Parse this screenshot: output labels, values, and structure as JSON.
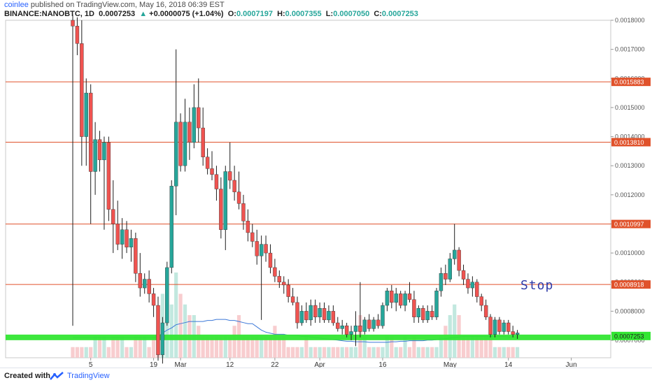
{
  "header": {
    "author": "coinlee",
    "published_text": "published on TradingView.com, May 16, 2018 06:39 EST",
    "symbol": "BINANCE:NANOBTC, 1D",
    "last": "0.0007253",
    "arrow": "▲",
    "change": "+0.0000075 (+1.04%)",
    "o_label": "O:",
    "o_value": "0.0007197",
    "h_label": "H:",
    "h_value": "0.0007355",
    "l_label": "L:",
    "l_value": "0.0007050",
    "c_label": "C:",
    "c_value": "0.0007253"
  },
  "footer": {
    "created_with": "Created with",
    "brand": "TradingView"
  },
  "annotation": {
    "stop_text": "Stop"
  },
  "colors": {
    "up": "#26a69a",
    "down": "#ef5350",
    "level_line": "#e0522b",
    "support_band": "#33e633",
    "volume_ma": "#3c78d8"
  },
  "chart_data": {
    "type": "candlestick",
    "price_axis": {
      "ylim": [
        0.00064,
        0.0018
      ],
      "tick_labels": [
        "0.0007000",
        "0.0008000",
        "0.0009000",
        "0.0010000",
        "0.0011000",
        "0.0012000",
        "0.0013000",
        "0.0014000",
        "0.0015000",
        "0.0016000",
        "0.0017000",
        "0.0018000"
      ],
      "tick_values": [
        0.0007,
        0.0008,
        0.0009,
        0.001,
        0.0011,
        0.0012,
        0.0013,
        0.0014,
        0.0015,
        0.0016,
        0.0017,
        0.0018
      ]
    },
    "time_axis": {
      "tick_labels": [
        "5",
        "19",
        "Mar",
        "12",
        "22",
        "Apr",
        "16",
        "May",
        "14",
        "Jun"
      ],
      "tick_days": [
        4,
        18,
        24,
        35,
        45,
        55,
        69,
        84,
        97,
        111
      ]
    },
    "horizontal_levels": [
      {
        "value": 0.0015883,
        "label": "0.0015883"
      },
      {
        "value": 0.001381,
        "label": "0.0013810"
      },
      {
        "value": 0.0010997,
        "label": "0.0010997"
      },
      {
        "value": 0.0008918,
        "label": "0.0008918"
      }
    ],
    "support_band": {
      "value": 0.00071,
      "label": "0.0007253",
      "note": "Stop"
    },
    "candles": [
      {
        "d": 0,
        "o": 0.0018,
        "h": 0.00182,
        "l": 0.00075,
        "c": 0.00178
      },
      {
        "d": 1,
        "o": 0.00178,
        "h": 0.00181,
        "l": 0.00168,
        "c": 0.00172
      },
      {
        "d": 2,
        "o": 0.00172,
        "h": 0.0018,
        "l": 0.0013,
        "c": 0.0014
      },
      {
        "d": 3,
        "o": 0.0014,
        "h": 0.0016,
        "l": 0.0013,
        "c": 0.00155
      },
      {
        "d": 4,
        "o": 0.00155,
        "h": 0.00158,
        "l": 0.0011,
        "c": 0.00128
      },
      {
        "d": 5,
        "o": 0.00128,
        "h": 0.00145,
        "l": 0.0012,
        "c": 0.00139
      },
      {
        "d": 6,
        "o": 0.00139,
        "h": 0.00142,
        "l": 0.00128,
        "c": 0.00132
      },
      {
        "d": 7,
        "o": 0.00132,
        "h": 0.0014,
        "l": 0.00108,
        "c": 0.00138
      },
      {
        "d": 8,
        "o": 0.00138,
        "h": 0.0014,
        "l": 0.00111,
        "c": 0.00115
      },
      {
        "d": 9,
        "o": 0.00115,
        "h": 0.00125,
        "l": 0.001,
        "c": 0.0011
      },
      {
        "d": 10,
        "o": 0.0011,
        "h": 0.00118,
        "l": 0.00101,
        "c": 0.00103
      },
      {
        "d": 11,
        "o": 0.00103,
        "h": 0.00112,
        "l": 0.00098,
        "c": 0.00108
      },
      {
        "d": 12,
        "o": 0.00108,
        "h": 0.00111,
        "l": 0.001,
        "c": 0.00102
      },
      {
        "d": 13,
        "o": 0.00102,
        "h": 0.00108,
        "l": 0.00097,
        "c": 0.00105
      },
      {
        "d": 14,
        "o": 0.00105,
        "h": 0.00107,
        "l": 0.0009,
        "c": 0.00093
      },
      {
        "d": 15,
        "o": 0.00093,
        "h": 0.001,
        "l": 0.00085,
        "c": 0.00088
      },
      {
        "d": 16,
        "o": 0.00088,
        "h": 0.00093,
        "l": 0.00086,
        "c": 0.00091
      },
      {
        "d": 17,
        "o": 0.00091,
        "h": 0.00094,
        "l": 0.00083,
        "c": 0.00086
      },
      {
        "d": 18,
        "o": 0.00086,
        "h": 0.00088,
        "l": 0.00078,
        "c": 0.00082
      },
      {
        "d": 19,
        "o": 0.00082,
        "h": 0.00085,
        "l": 0.00063,
        "c": 0.00065
      },
      {
        "d": 20,
        "o": 0.00065,
        "h": 0.00078,
        "l": 0.00062,
        "c": 0.00076
      },
      {
        "d": 21,
        "o": 0.00076,
        "h": 0.00097,
        "l": 0.00075,
        "c": 0.00095
      },
      {
        "d": 22,
        "o": 0.00095,
        "h": 0.00125,
        "l": 0.00093,
        "c": 0.00123
      },
      {
        "d": 23,
        "o": 0.00123,
        "h": 0.0017,
        "l": 0.00113,
        "c": 0.00145
      },
      {
        "d": 24,
        "o": 0.00145,
        "h": 0.00148,
        "l": 0.00128,
        "c": 0.0013
      },
      {
        "d": 25,
        "o": 0.0013,
        "h": 0.00153,
        "l": 0.00128,
        "c": 0.00145
      },
      {
        "d": 26,
        "o": 0.00145,
        "h": 0.0015,
        "l": 0.00132,
        "c": 0.00138
      },
      {
        "d": 27,
        "o": 0.00138,
        "h": 0.00158,
        "l": 0.00136,
        "c": 0.0015
      },
      {
        "d": 28,
        "o": 0.0015,
        "h": 0.0016,
        "l": 0.00138,
        "c": 0.00143
      },
      {
        "d": 29,
        "o": 0.00143,
        "h": 0.0015,
        "l": 0.0013,
        "c": 0.00133
      },
      {
        "d": 30,
        "o": 0.00133,
        "h": 0.00136,
        "l": 0.00127,
        "c": 0.00129
      },
      {
        "d": 31,
        "o": 0.00129,
        "h": 0.00135,
        "l": 0.00125,
        "c": 0.00127
      },
      {
        "d": 32,
        "o": 0.00127,
        "h": 0.0013,
        "l": 0.00118,
        "c": 0.00122
      },
      {
        "d": 33,
        "o": 0.00122,
        "h": 0.00126,
        "l": 0.00105,
        "c": 0.00108
      },
      {
        "d": 34,
        "o": 0.00108,
        "h": 0.0013,
        "l": 0.00101,
        "c": 0.00128
      },
      {
        "d": 35,
        "o": 0.00128,
        "h": 0.00138,
        "l": 0.00122,
        "c": 0.00125
      },
      {
        "d": 36,
        "o": 0.00125,
        "h": 0.0013,
        "l": 0.00118,
        "c": 0.00121
      },
      {
        "d": 37,
        "o": 0.00121,
        "h": 0.00128,
        "l": 0.00115,
        "c": 0.00117
      },
      {
        "d": 38,
        "o": 0.00117,
        "h": 0.0012,
        "l": 0.00108,
        "c": 0.00111
      },
      {
        "d": 39,
        "o": 0.00111,
        "h": 0.00115,
        "l": 0.00104,
        "c": 0.00107
      },
      {
        "d": 40,
        "o": 0.00107,
        "h": 0.0011,
        "l": 0.00102,
        "c": 0.00104
      },
      {
        "d": 41,
        "o": 0.00104,
        "h": 0.00108,
        "l": 0.00096,
        "c": 0.00099
      },
      {
        "d": 42,
        "o": 0.00099,
        "h": 0.00106,
        "l": 0.00077,
        "c": 0.00103
      },
      {
        "d": 43,
        "o": 0.00103,
        "h": 0.00106,
        "l": 0.00097,
        "c": 0.001
      },
      {
        "d": 44,
        "o": 0.001,
        "h": 0.00103,
        "l": 0.00093,
        "c": 0.00095
      },
      {
        "d": 45,
        "o": 0.00095,
        "h": 0.00098,
        "l": 0.0009,
        "c": 0.00092
      },
      {
        "d": 46,
        "o": 0.00092,
        "h": 0.00094,
        "l": 0.00088,
        "c": 0.0009
      },
      {
        "d": 47,
        "o": 0.0009,
        "h": 0.00092,
        "l": 0.00086,
        "c": 0.00089
      },
      {
        "d": 48,
        "o": 0.00089,
        "h": 0.00091,
        "l": 0.00083,
        "c": 0.00085
      },
      {
        "d": 49,
        "o": 0.00085,
        "h": 0.00088,
        "l": 0.00082,
        "c": 0.00083
      },
      {
        "d": 50,
        "o": 0.00083,
        "h": 0.00085,
        "l": 0.00074,
        "c": 0.00076
      },
      {
        "d": 51,
        "o": 0.00076,
        "h": 0.00082,
        "l": 0.00075,
        "c": 0.0008
      },
      {
        "d": 52,
        "o": 0.0008,
        "h": 0.00083,
        "l": 0.00076,
        "c": 0.00077
      },
      {
        "d": 53,
        "o": 0.00077,
        "h": 0.00084,
        "l": 0.00075,
        "c": 0.00082
      },
      {
        "d": 54,
        "o": 0.00082,
        "h": 0.00084,
        "l": 0.00076,
        "c": 0.00078
      },
      {
        "d": 55,
        "o": 0.00078,
        "h": 0.00083,
        "l": 0.00076,
        "c": 0.00081
      },
      {
        "d": 56,
        "o": 0.00081,
        "h": 0.00083,
        "l": 0.00076,
        "c": 0.00077
      },
      {
        "d": 57,
        "o": 0.00077,
        "h": 0.00082,
        "l": 0.00076,
        "c": 0.0008
      },
      {
        "d": 58,
        "o": 0.0008,
        "h": 0.00082,
        "l": 0.00075,
        "c": 0.00076
      },
      {
        "d": 59,
        "o": 0.00076,
        "h": 0.00078,
        "l": 0.00073,
        "c": 0.00074
      },
      {
        "d": 60,
        "o": 0.00074,
        "h": 0.00077,
        "l": 0.00072,
        "c": 0.00075
      },
      {
        "d": 61,
        "o": 0.00075,
        "h": 0.00076,
        "l": 0.00071,
        "c": 0.00072
      },
      {
        "d": 62,
        "o": 0.00072,
        "h": 0.00075,
        "l": 0.0007,
        "c": 0.00073
      },
      {
        "d": 63,
        "o": 0.00073,
        "h": 0.0008,
        "l": 0.00068,
        "c": 0.00075
      },
      {
        "d": 64,
        "o": 0.00075,
        "h": 0.0009,
        "l": 0.00071,
        "c": 0.00073
      },
      {
        "d": 65,
        "o": 0.00073,
        "h": 0.00078,
        "l": 0.00072,
        "c": 0.00077
      },
      {
        "d": 66,
        "o": 0.00077,
        "h": 0.00079,
        "l": 0.00073,
        "c": 0.00074
      },
      {
        "d": 67,
        "o": 0.00074,
        "h": 0.00078,
        "l": 0.00073,
        "c": 0.00077
      },
      {
        "d": 68,
        "o": 0.00077,
        "h": 0.00079,
        "l": 0.00074,
        "c": 0.00075
      },
      {
        "d": 69,
        "o": 0.00075,
        "h": 0.00083,
        "l": 0.00074,
        "c": 0.00082
      },
      {
        "d": 70,
        "o": 0.00082,
        "h": 0.00088,
        "l": 0.0008,
        "c": 0.00087
      },
      {
        "d": 71,
        "o": 0.00087,
        "h": 0.00089,
        "l": 0.00081,
        "c": 0.00083
      },
      {
        "d": 72,
        "o": 0.00083,
        "h": 0.00088,
        "l": 0.0008,
        "c": 0.00086
      },
      {
        "d": 73,
        "o": 0.00086,
        "h": 0.00087,
        "l": 0.00081,
        "c": 0.00082
      },
      {
        "d": 74,
        "o": 0.00082,
        "h": 0.00087,
        "l": 0.0008,
        "c": 0.00086
      },
      {
        "d": 75,
        "o": 0.00086,
        "h": 0.0009,
        "l": 0.00083,
        "c": 0.00084
      },
      {
        "d": 76,
        "o": 0.00084,
        "h": 0.00087,
        "l": 0.00076,
        "c": 0.00078
      },
      {
        "d": 77,
        "o": 0.00078,
        "h": 0.00082,
        "l": 0.00076,
        "c": 0.00081
      },
      {
        "d": 78,
        "o": 0.00081,
        "h": 0.00082,
        "l": 0.00076,
        "c": 0.00077
      },
      {
        "d": 79,
        "o": 0.00077,
        "h": 0.00082,
        "l": 0.00076,
        "c": 0.0008
      },
      {
        "d": 80,
        "o": 0.0008,
        "h": 0.00082,
        "l": 0.00077,
        "c": 0.00078
      },
      {
        "d": 81,
        "o": 0.00078,
        "h": 0.00088,
        "l": 0.00077,
        "c": 0.00087
      },
      {
        "d": 82,
        "o": 0.00087,
        "h": 0.00095,
        "l": 0.00085,
        "c": 0.00093
      },
      {
        "d": 83,
        "o": 0.00093,
        "h": 0.00096,
        "l": 0.00089,
        "c": 0.00091
      },
      {
        "d": 84,
        "o": 0.00091,
        "h": 0.001,
        "l": 0.0009,
        "c": 0.00098
      },
      {
        "d": 85,
        "o": 0.00098,
        "h": 0.0011,
        "l": 0.00096,
        "c": 0.00101
      },
      {
        "d": 86,
        "o": 0.00101,
        "h": 0.00102,
        "l": 0.00092,
        "c": 0.00094
      },
      {
        "d": 87,
        "o": 0.00094,
        "h": 0.00096,
        "l": 0.00089,
        "c": 0.00091
      },
      {
        "d": 88,
        "o": 0.00091,
        "h": 0.00093,
        "l": 0.00086,
        "c": 0.00088
      },
      {
        "d": 89,
        "o": 0.00088,
        "h": 0.00092,
        "l": 0.00085,
        "c": 0.0009
      },
      {
        "d": 90,
        "o": 0.0009,
        "h": 0.00091,
        "l": 0.00083,
        "c": 0.00085
      },
      {
        "d": 91,
        "o": 0.00085,
        "h": 0.00086,
        "l": 0.0008,
        "c": 0.00082
      },
      {
        "d": 92,
        "o": 0.00082,
        "h": 0.00084,
        "l": 0.00077,
        "c": 0.00078
      },
      {
        "d": 93,
        "o": 0.00078,
        "h": 0.00079,
        "l": 0.00071,
        "c": 0.00072
      },
      {
        "d": 94,
        "o": 0.00072,
        "h": 0.00078,
        "l": 0.00071,
        "c": 0.00077
      },
      {
        "d": 95,
        "o": 0.00077,
        "h": 0.00078,
        "l": 0.00072,
        "c": 0.00073
      },
      {
        "d": 96,
        "o": 0.00073,
        "h": 0.00077,
        "l": 0.00072,
        "c": 0.00076
      },
      {
        "d": 97,
        "o": 0.00076,
        "h": 0.00077,
        "l": 0.00072,
        "c": 0.00073
      },
      {
        "d": 98,
        "o": 0.00073,
        "h": 0.00075,
        "l": 0.00071,
        "c": 0.00072
      },
      {
        "d": 99,
        "o": 0.0007197,
        "h": 0.0007355,
        "l": 0.000705,
        "c": 0.0007253
      }
    ],
    "volume": [
      1,
      1,
      1,
      1,
      1,
      2,
      2,
      2,
      1,
      2,
      2,
      2,
      1,
      1,
      2,
      2,
      2,
      1,
      2,
      3,
      6,
      7,
      5,
      8,
      6,
      5,
      4,
      4,
      3,
      2,
      2,
      2,
      2,
      2,
      2,
      2,
      3,
      4,
      2,
      2,
      2,
      2,
      2,
      2,
      2,
      3,
      2,
      2,
      1,
      1,
      1,
      1,
      2,
      1,
      1,
      1,
      1,
      1,
      1,
      1,
      1,
      1,
      1,
      1,
      4,
      2,
      1,
      1,
      1,
      1,
      2,
      2,
      1,
      1,
      2,
      1,
      2,
      1,
      1,
      1,
      1,
      1,
      2,
      3,
      4,
      5,
      4,
      2,
      2,
      2,
      2,
      2,
      2,
      2,
      1,
      1,
      1,
      1,
      1,
      1
    ],
    "volume_ma": [
      1.9,
      1.9,
      1.9,
      1.9,
      1.9,
      1.9,
      1.9,
      1.9,
      1.9,
      1.9,
      1.9,
      1.9,
      1.9,
      1.9,
      1.9,
      1.9,
      1.9,
      1.9,
      1.9,
      2,
      2.3,
      2.6,
      2.8,
      3.1,
      3.2,
      3.3,
      3.4,
      3.4,
      3.4,
      3.4,
      3.5,
      3.5,
      3.6,
      3.6,
      3.6,
      3.5,
      3.5,
      3.4,
      3.3,
      3.2,
      3.2,
      2.9,
      2.6,
      2.4,
      2.3,
      2.2,
      2.2,
      2.2,
      2.1,
      2.1,
      2.1,
      2.0,
      2.0,
      1.95,
      1.9,
      1.85,
      1.8,
      1.75,
      1.7,
      1.65,
      1.6,
      1.55,
      1.55,
      1.5,
      1.5,
      1.5,
      1.45,
      1.45,
      1.45,
      1.45,
      1.45,
      1.5,
      1.5,
      1.55,
      1.55,
      1.6,
      1.6,
      1.6,
      1.6,
      1.65,
      1.65,
      1.7,
      1.75,
      1.8,
      1.85,
      1.9,
      1.95,
      2.0,
      2.0,
      2.0,
      2.0,
      2.0,
      2.0,
      2.0,
      2.0,
      2.0,
      2.0,
      1.95,
      1.95,
      1.95
    ]
  }
}
